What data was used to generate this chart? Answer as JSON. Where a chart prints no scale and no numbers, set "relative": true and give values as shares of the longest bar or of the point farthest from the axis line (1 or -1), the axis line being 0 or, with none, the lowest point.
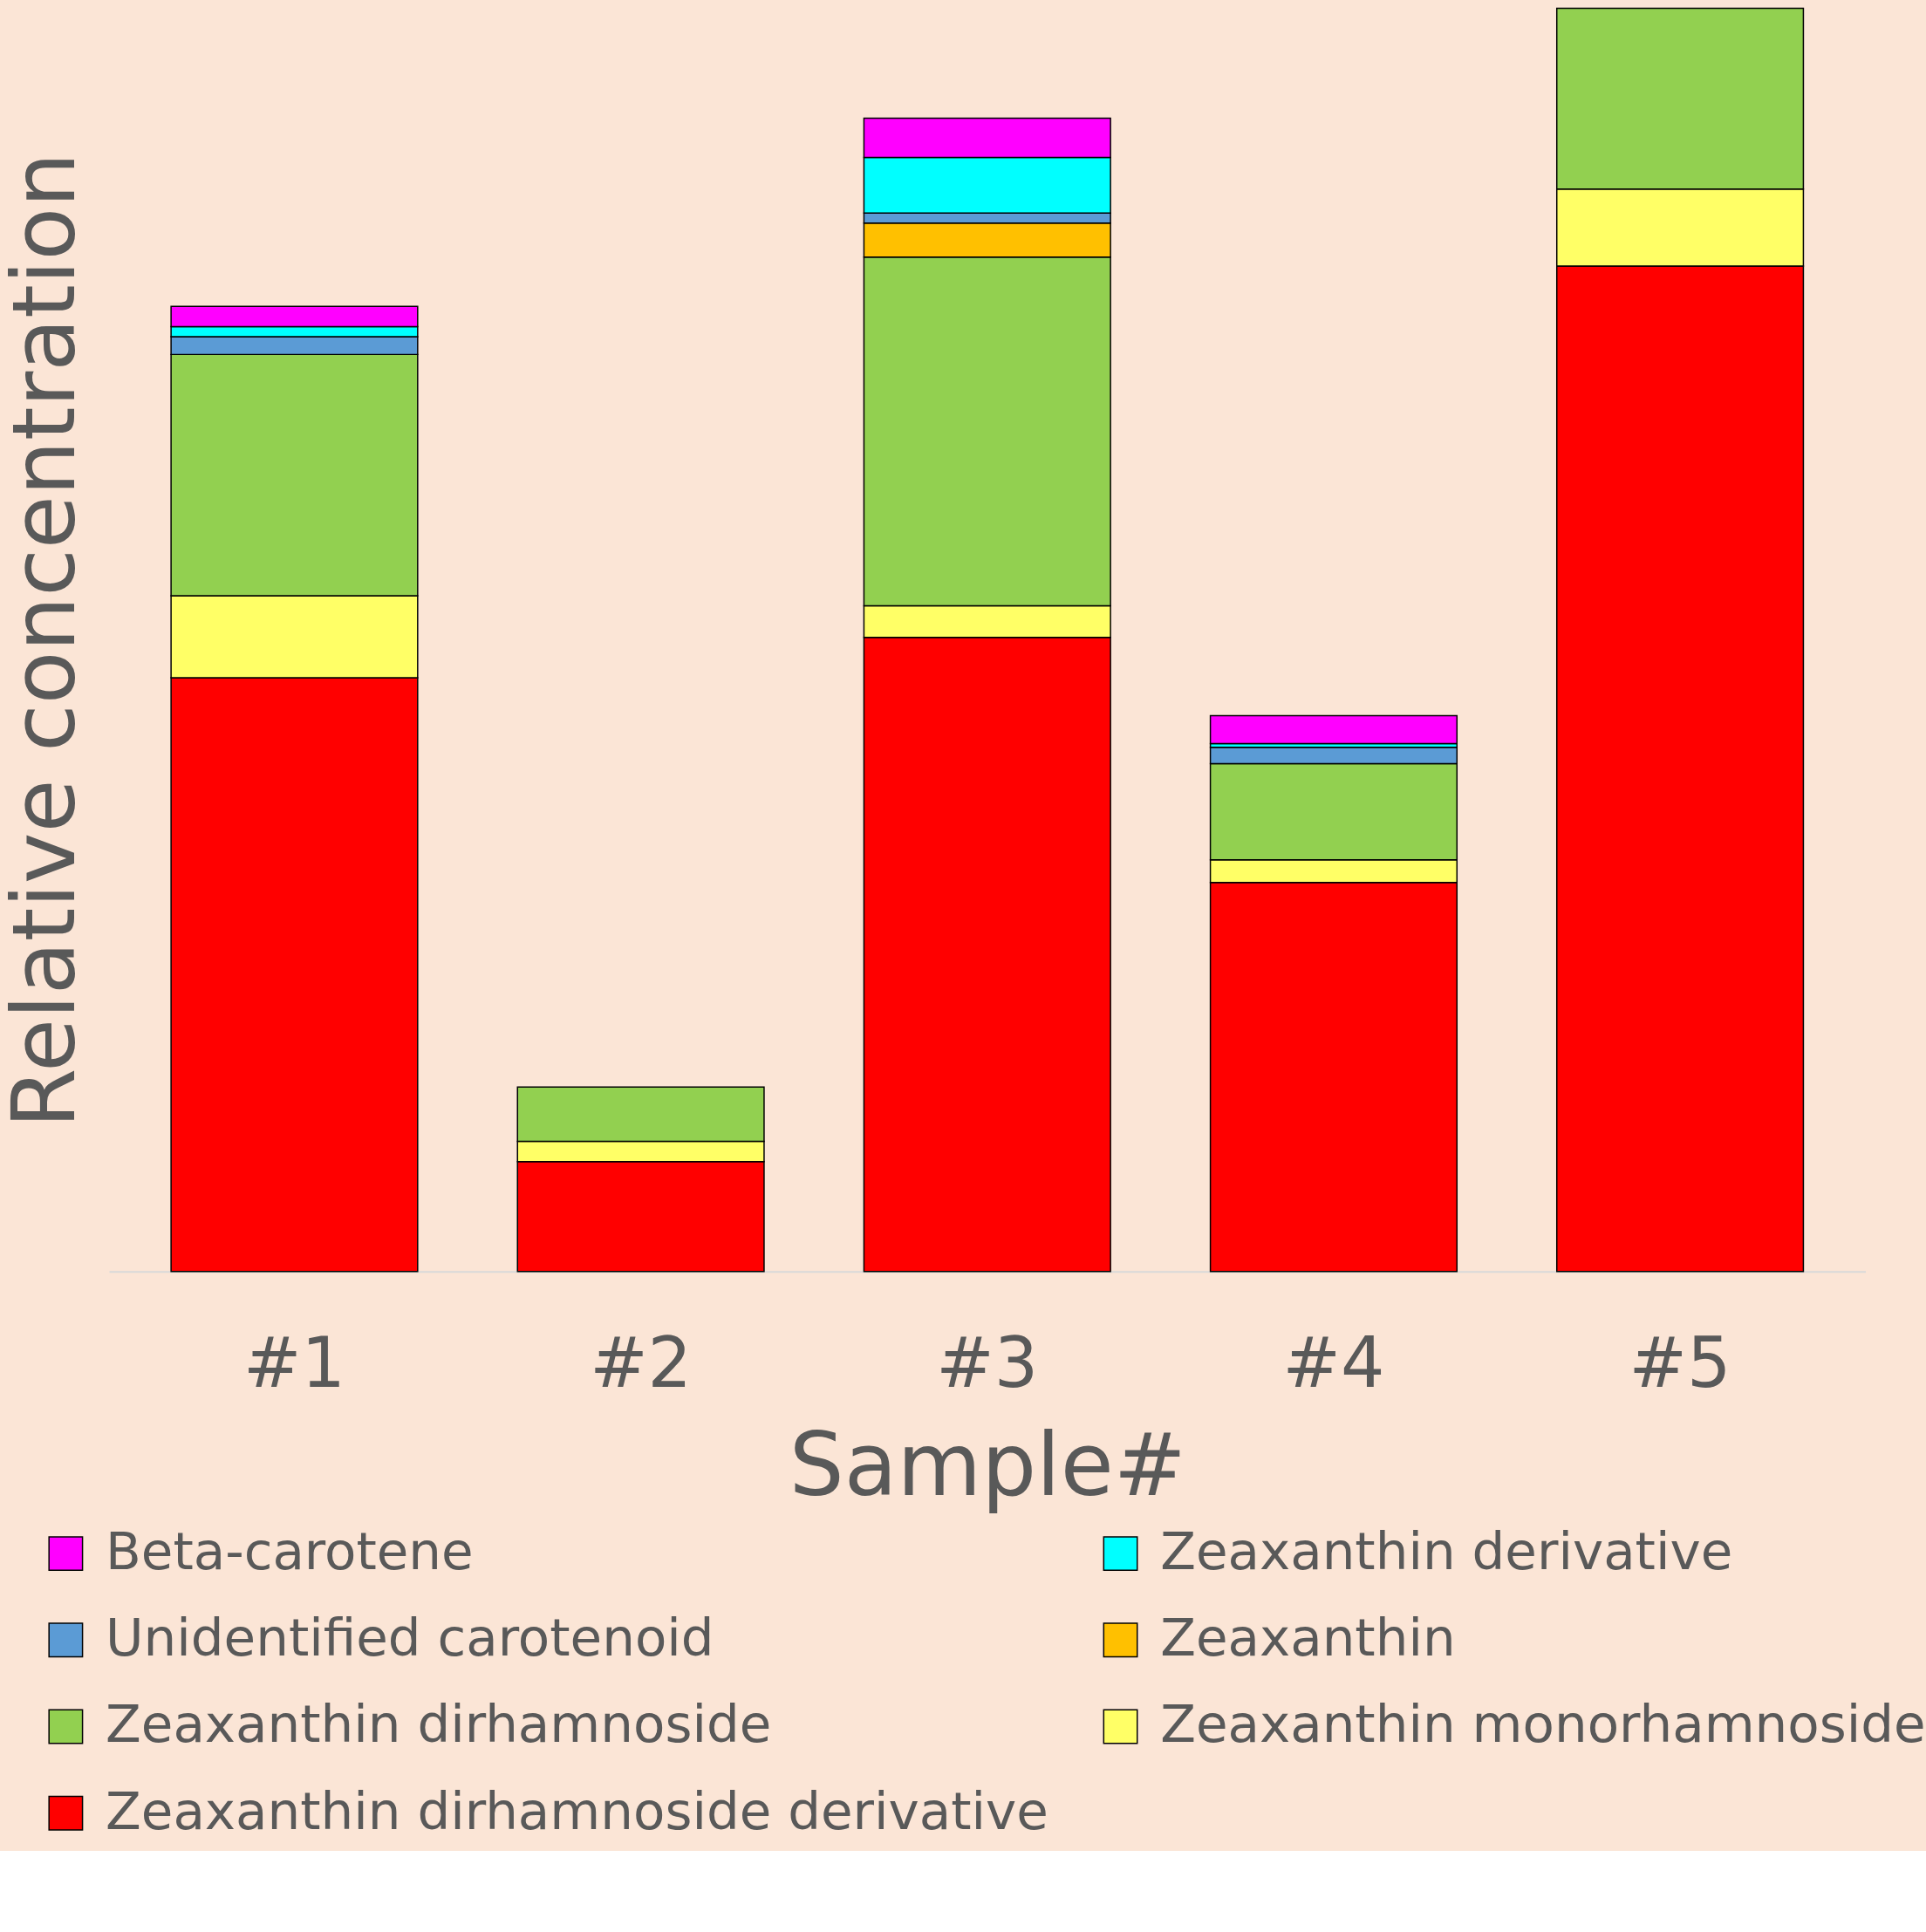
{
  "chart_data": {
    "type": "bar",
    "stacked": true,
    "relative": true,
    "xlabel": "Sample#",
    "ylabel": "Relative concentration",
    "categories": [
      "#1",
      "#2",
      "#3",
      "#4",
      "#5"
    ],
    "series": [
      {
        "name": "Zeaxanthin dirhamnoside derivative",
        "color": "#ff0000",
        "values": [
          0.47,
          0.087,
          0.502,
          0.308,
          0.796
        ]
      },
      {
        "name": "Zeaxanthin monorhamnoside",
        "color": "#ffff66",
        "values": [
          0.065,
          0.016,
          0.025,
          0.018,
          0.061
        ]
      },
      {
        "name": "Zeaxanthin dirhamnoside",
        "color": "#92d050",
        "values": [
          0.191,
          0.043,
          0.276,
          0.076,
          0.143
        ]
      },
      {
        "name": "Zeaxanthin",
        "color": "#ffc000",
        "values": [
          0,
          0,
          0.027,
          0,
          null
        ]
      },
      {
        "name": "Unidentified carotenoid",
        "color": "#5b9bd5",
        "values": [
          0.014,
          0,
          0.008,
          0.013,
          null
        ]
      },
      {
        "name": "Zeaxanthin derivative",
        "color": "#00ffff",
        "values": [
          0.008,
          0,
          0.044,
          0.003,
          null
        ]
      },
      {
        "name": "Beta-carotene",
        "color": "#ff00ff",
        "values": [
          0.016,
          0,
          0.031,
          0.022,
          null
        ]
      }
    ],
    "legend": "bottom"
  }
}
